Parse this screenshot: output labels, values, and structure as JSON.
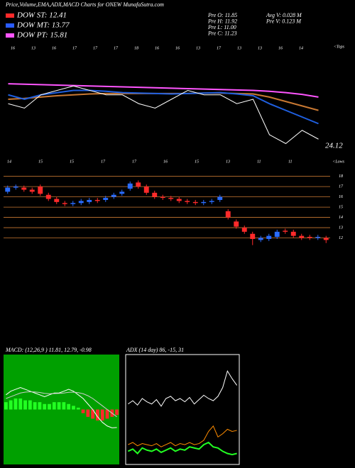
{
  "header": {
    "title": "Price,Volume,EMA,ADX,MACD Charts for ONEW MunafaSutra.com",
    "dow": [
      {
        "label": "DOW ST: 12.41",
        "color": "#ff2a2a"
      },
      {
        "label": "DOW MT: 13.77",
        "color": "#2a5cff"
      },
      {
        "label": "DOW PT: 15.81",
        "color": "#ff55ff"
      }
    ],
    "stats": [
      "Pre O: 11.85",
      "Pre H: 11.92",
      "Pre L: 11.00",
      "Pre C: 11.23",
      "Avg V: 0.028 M",
      "Pre V: 0.123 M"
    ],
    "top_labels": [
      "16",
      "13",
      "16",
      "17",
      "17",
      "17",
      "18",
      "16",
      "16",
      "13",
      "17",
      "13",
      "13",
      "16",
      "14"
    ],
    "tops_label": "<Tops",
    "bottom_labels": [
      "14",
      "15",
      "15",
      "17",
      "17",
      "16",
      "15",
      "13",
      "11",
      "11"
    ],
    "lows_label": "<Lows",
    "last_value": "24.12"
  },
  "chart_data": [
    {
      "type": "line",
      "ylim": [
        20,
        40
      ],
      "series": [
        {
          "color": "#ff55ff",
          "values": [
            35.5,
            35.4,
            35.3,
            35.2,
            35.1,
            35.0,
            34.9,
            34.8,
            34.7,
            34.6,
            34.5,
            34.4,
            34.3,
            34.2,
            34.1,
            34.0,
            33.8,
            33.5,
            33.1,
            32.5
          ]
        },
        {
          "color": "#c87832",
          "values": [
            32,
            32.2,
            32.5,
            32.8,
            33,
            33.2,
            33.3,
            33.3,
            33.3,
            33.3,
            33.3,
            33.3,
            33.4,
            33.4,
            33.3,
            33.2,
            32.5,
            31.5,
            30.5,
            29.5
          ]
        },
        {
          "color": "#1f5fe0",
          "values": [
            33,
            32,
            33,
            33.5,
            34,
            34,
            33.8,
            33.5,
            33.4,
            33.3,
            33.2,
            33.3,
            33.4,
            33.5,
            33.2,
            32.8,
            31,
            29.5,
            28,
            26.5
          ]
        },
        {
          "color": "#ffffff",
          "values": [
            31,
            30,
            33,
            34,
            35,
            34,
            33,
            33,
            31,
            30,
            32,
            34,
            33,
            33,
            31,
            32,
            24,
            22,
            25,
            23
          ]
        }
      ]
    },
    {
      "type": "candlestick",
      "ylim": [
        11,
        18.6
      ],
      "yticks": [
        12,
        13,
        14,
        15,
        16,
        17,
        18
      ],
      "up_color": "#2a6cff",
      "down_color": "#ff2a2a",
      "grid_color": "#c87832",
      "open": [
        16.5,
        16.9,
        16.9,
        16.7,
        17.0,
        16.2,
        15.8,
        15.4,
        15.3,
        15.4,
        15.5,
        15.7,
        15.7,
        16.0,
        16.3,
        16.8,
        17.4,
        17.0,
        16.4,
        16.0,
        15.9,
        15.8,
        15.6,
        15.5,
        15.4,
        15.5,
        15.7,
        14.6,
        13.6,
        13.0,
        12.4,
        11.8,
        11.9,
        12.1,
        12.7,
        12.6,
        12.2,
        12.1,
        12.0,
        12.0
      ],
      "high": [
        17.1,
        17.2,
        17.1,
        16.9,
        17.2,
        16.4,
        16.0,
        15.6,
        15.6,
        15.8,
        15.9,
        15.9,
        16.1,
        16.4,
        16.7,
        17.5,
        17.6,
        17.2,
        16.6,
        16.2,
        16.1,
        16.0,
        15.8,
        15.7,
        15.7,
        15.8,
        16.2,
        14.8,
        13.8,
        13.2,
        12.6,
        12.2,
        12.4,
        12.8,
        12.9,
        12.8,
        12.4,
        12.3,
        12.3,
        12.2
      ],
      "low": [
        16.3,
        16.7,
        16.5,
        16.3,
        16.1,
        15.6,
        15.3,
        15.1,
        15.1,
        15.2,
        15.3,
        15.4,
        15.5,
        15.8,
        16.1,
        16.6,
        16.8,
        16.2,
        15.8,
        15.7,
        15.6,
        15.4,
        15.3,
        15.2,
        15.2,
        15.3,
        15.5,
        13.8,
        12.9,
        12.4,
        11.3,
        11.6,
        11.7,
        11.9,
        12.4,
        12.0,
        11.8,
        11.8,
        11.8,
        11.5
      ],
      "close": [
        16.9,
        17.0,
        16.7,
        16.5,
        16.3,
        15.8,
        15.5,
        15.3,
        15.4,
        15.6,
        15.7,
        15.6,
        15.9,
        16.2,
        16.5,
        17.3,
        17.0,
        16.4,
        16.0,
        15.9,
        15.8,
        15.6,
        15.5,
        15.4,
        15.5,
        15.6,
        16.0,
        14.0,
        13.1,
        12.6,
        11.9,
        12.0,
        12.2,
        12.6,
        12.6,
        12.2,
        12.0,
        12.0,
        12.1,
        11.8
      ]
    },
    {
      "type": "macd",
      "title": "MACD: (12,26,9 ) 11.81, 12.79, -0.98",
      "ylim": [
        -3,
        3
      ],
      "background": "#00a000",
      "series": [
        {
          "color": "#ffffff",
          "values": [
            0.8,
            1.0,
            1.1,
            1.2,
            1.1,
            1.0,
            0.9,
            0.8,
            0.7,
            0.8,
            0.9,
            0.9,
            1.0,
            1.1,
            1.0,
            0.8,
            0.6,
            0.3,
            0.0,
            -0.4,
            -0.7,
            -0.9,
            -1.0,
            -0.98
          ]
        },
        {
          "color": "#cccccc",
          "values": [
            0.6,
            0.7,
            0.8,
            0.9,
            0.95,
            0.97,
            0.96,
            0.93,
            0.88,
            0.86,
            0.87,
            0.88,
            0.9,
            0.94,
            0.95,
            0.92,
            0.86,
            0.75,
            0.6,
            0.4,
            0.2,
            0.0,
            -0.2,
            -0.4
          ]
        }
      ],
      "histogram": [
        0.4,
        0.5,
        0.6,
        0.6,
        0.5,
        0.5,
        0.4,
        0.4,
        0.3,
        0.3,
        0.4,
        0.4,
        0.4,
        0.3,
        0.2,
        0.1,
        -0.2,
        -0.4,
        -0.5,
        -0.6,
        -0.6,
        -0.5,
        -0.4,
        -0.3
      ],
      "up_color": "#22ff22",
      "down_color": "#ff2a2a"
    },
    {
      "type": "adx",
      "title": "ADX (14 day) 86, -15, 31",
      "ylim": [
        0,
        100
      ],
      "series": [
        {
          "color": "#ffffff",
          "values": [
            55,
            58,
            54,
            60,
            57,
            55,
            59,
            53,
            60,
            62,
            58,
            60,
            57,
            61,
            55,
            59,
            63,
            60,
            58,
            62,
            70,
            85,
            78,
            72
          ]
        },
        {
          "color": "#22ff22",
          "values": [
            12,
            14,
            10,
            15,
            13,
            12,
            14,
            11,
            13,
            15,
            12,
            14,
            13,
            16,
            15,
            14,
            18,
            20,
            16,
            15,
            12,
            10,
            9,
            10
          ]
        },
        {
          "color": "#ff8c00",
          "values": [
            18,
            20,
            17,
            19,
            18,
            17,
            19,
            16,
            18,
            20,
            17,
            19,
            18,
            20,
            18,
            19,
            22,
            30,
            35,
            25,
            28,
            32,
            30,
            31
          ]
        }
      ]
    }
  ]
}
